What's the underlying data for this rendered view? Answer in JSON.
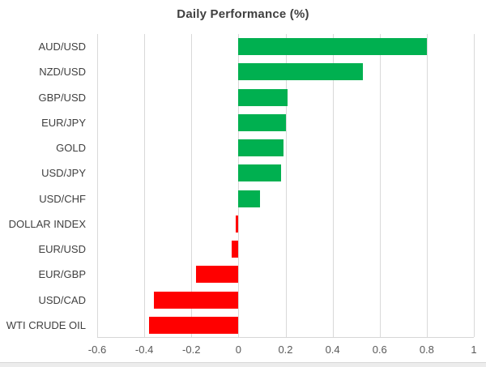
{
  "chart": {
    "title": "Daily Performance (%)"
  },
  "colors": {
    "positive_bar": "#00b050",
    "negative_bar": "#ff0000",
    "gridline": "#d9d9d9",
    "title_text": "#404040",
    "category_text": "#404040",
    "tick_text": "#595959"
  },
  "chart_data": {
    "type": "bar",
    "orientation": "horizontal",
    "title": "Daily Performance (%)",
    "categories": [
      "AUD/USD",
      "NZD/USD",
      "GBP/USD",
      "EUR/JPY",
      "GOLD",
      "USD/JPY",
      "USD/CHF",
      "DOLLAR INDEX",
      "EUR/USD",
      "EUR/GBP",
      "USD/CAD",
      "WTI CRUDE OIL"
    ],
    "values": [
      0.8,
      0.53,
      0.21,
      0.2,
      0.19,
      0.18,
      0.09,
      -0.01,
      -0.03,
      -0.18,
      -0.36,
      -0.38
    ],
    "xlabel": "",
    "ylabel": "",
    "xlim": [
      -0.6,
      1.0
    ],
    "x_ticks": [
      -0.6,
      -0.4,
      -0.2,
      0,
      0.2,
      0.4,
      0.6,
      0.8,
      1
    ],
    "x_tick_labels": [
      "-0.6",
      "-0.4",
      "-0.2",
      "0",
      "0.2",
      "0.4",
      "0.6",
      "0.8",
      "1"
    ],
    "grid": true,
    "legend": "none",
    "bar_color_rule": "positive=green, negative=red"
  }
}
